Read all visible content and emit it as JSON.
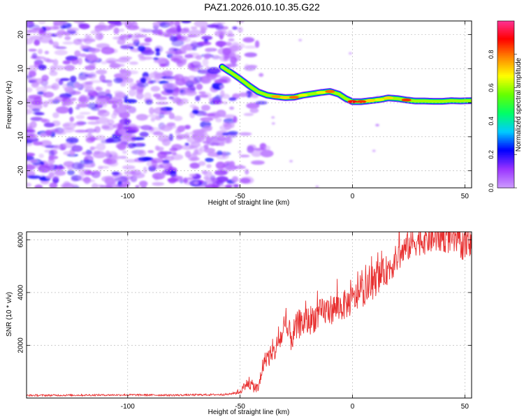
{
  "title": "PAZ1.2026.010.10.35.G22",
  "chart_data": [
    {
      "type": "heatmap",
      "xlabel": "Height of straight line (km)",
      "ylabel": "Frequency (Hz)",
      "xlim": [
        -145,
        53
      ],
      "ylim": [
        -25,
        24
      ],
      "xticks": [
        -100,
        -50,
        0,
        50
      ],
      "yticks": [
        -20,
        -10,
        0,
        10,
        20
      ],
      "colorbar": {
        "label": "Normalized spectral amplitude",
        "range": [
          0,
          1
        ],
        "ticks": [
          0.0,
          0.2,
          0.4,
          0.6,
          0.8
        ],
        "colors": [
          "#cc99ff",
          "#9933ff",
          "#0000ff",
          "#00ccff",
          "#00ff66",
          "#66ff00",
          "#ffff00",
          "#ff8800",
          "#ff0000",
          "#ff3399"
        ]
      },
      "noise_region_x": [
        -145,
        -52
      ],
      "ridge": [
        {
          "x": -58,
          "y": 10.5,
          "a": 0.35
        },
        {
          "x": -54,
          "y": 8.8,
          "a": 0.45
        },
        {
          "x": -50,
          "y": 7.0,
          "a": 0.4
        },
        {
          "x": -46,
          "y": 5.0,
          "a": 0.45
        },
        {
          "x": -42,
          "y": 3.2,
          "a": 0.55
        },
        {
          "x": -38,
          "y": 2.2,
          "a": 0.6
        },
        {
          "x": -34,
          "y": 1.8,
          "a": 0.75
        },
        {
          "x": -30,
          "y": 1.5,
          "a": 0.7
        },
        {
          "x": -26,
          "y": 1.6,
          "a": 0.8
        },
        {
          "x": -22,
          "y": 2.2,
          "a": 0.65
        },
        {
          "x": -18,
          "y": 2.6,
          "a": 0.6
        },
        {
          "x": -14,
          "y": 3.0,
          "a": 0.65
        },
        {
          "x": -10,
          "y": 3.3,
          "a": 0.8
        },
        {
          "x": -6,
          "y": 2.5,
          "a": 0.6
        },
        {
          "x": -3,
          "y": 1.2,
          "a": 0.6
        },
        {
          "x": 0,
          "y": 0.3,
          "a": 0.9
        },
        {
          "x": 4,
          "y": 0.3,
          "a": 0.85
        },
        {
          "x": 8,
          "y": 0.6,
          "a": 0.7
        },
        {
          "x": 12,
          "y": 0.9,
          "a": 0.65
        },
        {
          "x": 16,
          "y": 1.4,
          "a": 0.7
        },
        {
          "x": 20,
          "y": 1.2,
          "a": 0.6
        },
        {
          "x": 24,
          "y": 0.8,
          "a": 0.85
        },
        {
          "x": 28,
          "y": 0.5,
          "a": 0.6
        },
        {
          "x": 32,
          "y": 0.5,
          "a": 0.55
        },
        {
          "x": 36,
          "y": 0.4,
          "a": 0.6
        },
        {
          "x": 40,
          "y": 0.4,
          "a": 0.55
        },
        {
          "x": 44,
          "y": 0.6,
          "a": 0.6
        },
        {
          "x": 48,
          "y": 0.5,
          "a": 0.55
        },
        {
          "x": 53,
          "y": 0.6,
          "a": 0.55
        }
      ]
    },
    {
      "type": "line",
      "xlabel": "Height of straight line (km)",
      "ylabel": "SNR (10 * v/v)",
      "xlim": [
        -145,
        53
      ],
      "ylim": [
        0,
        6300
      ],
      "xticks": [
        -100,
        -50,
        0,
        50
      ],
      "yticks": [
        2000,
        4000,
        6000
      ],
      "color": "#e83030",
      "series": [
        {
          "name": "SNR",
          "x": [
            -145,
            -120,
            -100,
            -80,
            -60,
            -55,
            -50,
            -47,
            -44,
            -42,
            -40,
            -38,
            -36,
            -33,
            -30,
            -27,
            -24,
            -20,
            -16,
            -12,
            -8,
            -4,
            0,
            4,
            8,
            12,
            16,
            20,
            24,
            28,
            32,
            36,
            40,
            44,
            48,
            50,
            53
          ],
          "y": [
            100,
            110,
            120,
            110,
            130,
            140,
            250,
            550,
            450,
            300,
            1200,
            1600,
            1500,
            2100,
            2600,
            2300,
            2800,
            2900,
            3100,
            3300,
            3400,
            3500,
            3700,
            4000,
            4200,
            4600,
            4900,
            5300,
            5700,
            5950,
            6000,
            6050,
            6100,
            6000,
            5850,
            5750,
            5800
          ]
        }
      ]
    }
  ]
}
